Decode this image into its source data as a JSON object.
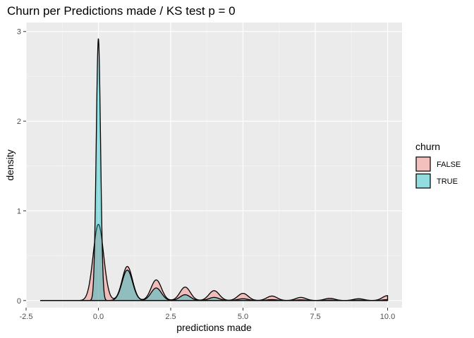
{
  "chart_data": {
    "type": "area",
    "title": "Churn per Predictions made / KS test p = 0",
    "xlabel": "predictions made",
    "ylabel": "density",
    "xlim": [
      -2.5,
      10.5
    ],
    "ylim": [
      -0.08,
      3.1
    ],
    "x_ticks": [
      -2.5,
      0,
      2.5,
      5,
      7.5,
      10
    ],
    "x_tick_labels": [
      "-2.5",
      "0.0",
      "2.5",
      "5.0",
      "7.5",
      "10.0"
    ],
    "y_ticks": [
      0,
      1,
      2,
      3
    ],
    "y_tick_labels": [
      "0",
      "1",
      "2",
      "3"
    ],
    "grid": true,
    "x_range": [
      -2,
      10
    ],
    "legend": {
      "title": "churn",
      "position": "right"
    },
    "series": [
      {
        "name": "FALSE",
        "fill": "#F8766D",
        "fill_opacity": 0.4,
        "peaks": [
          {
            "x": 0,
            "y": 0.85
          },
          {
            "x": 1,
            "y": 0.38
          },
          {
            "x": 2,
            "y": 0.23
          },
          {
            "x": 3,
            "y": 0.15
          },
          {
            "x": 4,
            "y": 0.11
          },
          {
            "x": 5,
            "y": 0.08
          },
          {
            "x": 6,
            "y": 0.05
          },
          {
            "x": 7,
            "y": 0.035
          },
          {
            "x": 8,
            "y": 0.025
          },
          {
            "x": 9,
            "y": 0.02
          },
          {
            "x": 10,
            "y": 0.055
          }
        ]
      },
      {
        "name": "TRUE",
        "fill": "#00BFC4",
        "fill_opacity": 0.4,
        "peaks": [
          {
            "x": 0,
            "y": 2.92
          },
          {
            "x": 1,
            "y": 0.34
          },
          {
            "x": 2,
            "y": 0.14
          },
          {
            "x": 3,
            "y": 0.065
          },
          {
            "x": 4,
            "y": 0.035
          },
          {
            "x": 5,
            "y": 0.02
          },
          {
            "x": 6,
            "y": 0.01
          },
          {
            "x": 7,
            "y": 0.007
          },
          {
            "x": 8,
            "y": 0.005
          },
          {
            "x": 9,
            "y": 0.004
          },
          {
            "x": 10,
            "y": 0.01
          }
        ]
      }
    ]
  },
  "colors": {
    "panel_background": "#EBEBEB",
    "grid_major": "#FFFFFF",
    "grid_minor": "#F5F5F5",
    "outline": "#000000"
  }
}
